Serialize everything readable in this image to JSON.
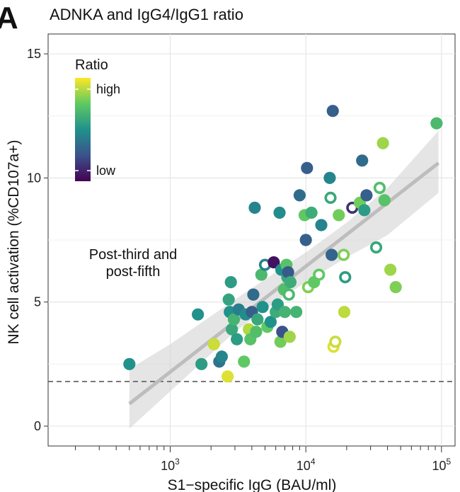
{
  "panel_letter": "A",
  "chart_data": {
    "type": "scatter",
    "title": "ADNKA and IgG4/IgG1 ratio",
    "xlabel": "S1−specific IgG (BAU/ml)",
    "ylabel": "NK cell activation (%CD107a+)",
    "xscale": "log10",
    "xlim_log10": [
      2.1,
      5.1
    ],
    "ylim": [
      -0.8,
      15.8
    ],
    "x_ticks": [
      {
        "value": 1000,
        "base": "10",
        "exp": "3"
      },
      {
        "value": 10000,
        "base": "10",
        "exp": "4"
      },
      {
        "value": 100000,
        "base": "10",
        "exp": "5"
      }
    ],
    "y_ticks": [
      {
        "value": 0,
        "label": "0"
      },
      {
        "value": 5,
        "label": "5"
      },
      {
        "value": 10,
        "label": "10"
      },
      {
        "value": 15,
        "label": "15"
      }
    ],
    "legend": {
      "title": "Ratio",
      "high_label": "high",
      "low_label": "low",
      "position": "top-left"
    },
    "annotation": "Post-third and\npost-fifth",
    "colormap": [
      "#440154",
      "#3b528b",
      "#21918c",
      "#5ec962",
      "#fde725"
    ],
    "reference_line_y": 1.8,
    "regression": {
      "x_start": 500,
      "x_end": 95000,
      "y_start": 0.9,
      "y_end": 10.6
    },
    "confidence_band": {
      "x": [
        500,
        1000,
        3000,
        6000,
        10000,
        20000,
        40000,
        95000
      ],
      "upper": [
        2.3,
        3.3,
        5.1,
        6.2,
        7.0,
        8.2,
        9.6,
        11.9
      ],
      "lower": [
        -0.1,
        1.4,
        3.8,
        5.0,
        5.8,
        6.8,
        7.7,
        9.4
      ]
    },
    "points": [
      {
        "x": 500,
        "y": 2.5,
        "ratio": 0.5,
        "hollow": false
      },
      {
        "x": 1600,
        "y": 4.5,
        "ratio": 0.5,
        "hollow": false
      },
      {
        "x": 1700,
        "y": 2.5,
        "ratio": 0.55,
        "hollow": false
      },
      {
        "x": 2100,
        "y": 3.3,
        "ratio": 0.92,
        "hollow": false
      },
      {
        "x": 2300,
        "y": 2.6,
        "ratio": 0.38,
        "hollow": false
      },
      {
        "x": 2400,
        "y": 2.8,
        "ratio": 0.45,
        "hollow": false
      },
      {
        "x": 2650,
        "y": 2.0,
        "ratio": 0.95,
        "hollow": false
      },
      {
        "x": 2700,
        "y": 5.1,
        "ratio": 0.58,
        "hollow": false
      },
      {
        "x": 2750,
        "y": 4.6,
        "ratio": 0.5,
        "hollow": false
      },
      {
        "x": 2800,
        "y": 5.8,
        "ratio": 0.55,
        "hollow": false
      },
      {
        "x": 2850,
        "y": 3.9,
        "ratio": 0.6,
        "hollow": false
      },
      {
        "x": 2950,
        "y": 4.3,
        "ratio": 0.65,
        "hollow": false
      },
      {
        "x": 3100,
        "y": 3.5,
        "ratio": 0.55,
        "hollow": false
      },
      {
        "x": 3200,
        "y": 4.7,
        "ratio": 0.42,
        "hollow": false
      },
      {
        "x": 3500,
        "y": 2.6,
        "ratio": 0.75,
        "hollow": false
      },
      {
        "x": 3600,
        "y": 4.5,
        "ratio": 0.48,
        "hollow": false
      },
      {
        "x": 3800,
        "y": 3.9,
        "ratio": 0.88,
        "hollow": false
      },
      {
        "x": 3900,
        "y": 3.5,
        "ratio": 0.72,
        "hollow": false
      },
      {
        "x": 4000,
        "y": 4.6,
        "ratio": 0.3,
        "hollow": false
      },
      {
        "x": 4100,
        "y": 5.3,
        "ratio": 0.35,
        "hollow": false
      },
      {
        "x": 4200,
        "y": 8.8,
        "ratio": 0.45,
        "hollow": false
      },
      {
        "x": 4300,
        "y": 3.8,
        "ratio": 0.7,
        "hollow": false
      },
      {
        "x": 4400,
        "y": 4.3,
        "ratio": 0.6,
        "hollow": false
      },
      {
        "x": 4700,
        "y": 6.1,
        "ratio": 0.68,
        "hollow": false
      },
      {
        "x": 4800,
        "y": 4.8,
        "ratio": 0.5,
        "hollow": false
      },
      {
        "x": 5000,
        "y": 6.5,
        "ratio": 0.45,
        "hollow": true
      },
      {
        "x": 5200,
        "y": 4.0,
        "ratio": 0.75,
        "hollow": false
      },
      {
        "x": 5500,
        "y": 4.2,
        "ratio": 0.5,
        "hollow": false
      },
      {
        "x": 5800,
        "y": 6.6,
        "ratio": 0.05,
        "hollow": false
      },
      {
        "x": 6000,
        "y": 4.6,
        "ratio": 0.62,
        "hollow": false
      },
      {
        "x": 6200,
        "y": 4.9,
        "ratio": 0.55,
        "hollow": false
      },
      {
        "x": 6400,
        "y": 8.6,
        "ratio": 0.48,
        "hollow": false
      },
      {
        "x": 6500,
        "y": 3.4,
        "ratio": 0.78,
        "hollow": false
      },
      {
        "x": 6600,
        "y": 6.3,
        "ratio": 0.5,
        "hollow": false
      },
      {
        "x": 6700,
        "y": 3.8,
        "ratio": 0.25,
        "hollow": false
      },
      {
        "x": 6900,
        "y": 5.5,
        "ratio": 0.7,
        "hollow": false
      },
      {
        "x": 7000,
        "y": 4.6,
        "ratio": 0.65,
        "hollow": false
      },
      {
        "x": 7200,
        "y": 6.5,
        "ratio": 0.72,
        "hollow": false
      },
      {
        "x": 7300,
        "y": 6.0,
        "ratio": 0.6,
        "hollow": false
      },
      {
        "x": 7400,
        "y": 6.2,
        "ratio": 0.28,
        "hollow": false
      },
      {
        "x": 7500,
        "y": 5.3,
        "ratio": 0.68,
        "hollow": true
      },
      {
        "x": 7600,
        "y": 3.6,
        "ratio": 0.85,
        "hollow": false
      },
      {
        "x": 7700,
        "y": 5.8,
        "ratio": 0.62,
        "hollow": false
      },
      {
        "x": 8500,
        "y": 4.6,
        "ratio": 0.65,
        "hollow": false
      },
      {
        "x": 9000,
        "y": 9.3,
        "ratio": 0.35,
        "hollow": false
      },
      {
        "x": 9800,
        "y": 8.5,
        "ratio": 0.75,
        "hollow": false
      },
      {
        "x": 10000,
        "y": 7.5,
        "ratio": 0.3,
        "hollow": false
      },
      {
        "x": 10200,
        "y": 10.4,
        "ratio": 0.3,
        "hollow": false
      },
      {
        "x": 10400,
        "y": 5.6,
        "ratio": 0.8,
        "hollow": true
      },
      {
        "x": 11000,
        "y": 8.6,
        "ratio": 0.62,
        "hollow": false
      },
      {
        "x": 11500,
        "y": 5.8,
        "ratio": 0.75,
        "hollow": false
      },
      {
        "x": 12500,
        "y": 6.1,
        "ratio": 0.75,
        "hollow": true
      },
      {
        "x": 13000,
        "y": 8.1,
        "ratio": 0.45,
        "hollow": false
      },
      {
        "x": 15000,
        "y": 10.0,
        "ratio": 0.45,
        "hollow": false
      },
      {
        "x": 15200,
        "y": 9.2,
        "ratio": 0.6,
        "hollow": true
      },
      {
        "x": 15500,
        "y": 6.9,
        "ratio": 0.32,
        "hollow": false
      },
      {
        "x": 15800,
        "y": 12.7,
        "ratio": 0.3,
        "hollow": false
      },
      {
        "x": 16000,
        "y": 3.2,
        "ratio": 0.95,
        "hollow": true
      },
      {
        "x": 16500,
        "y": 3.4,
        "ratio": 0.92,
        "hollow": true
      },
      {
        "x": 17500,
        "y": 8.5,
        "ratio": 0.78,
        "hollow": false
      },
      {
        "x": 19000,
        "y": 6.9,
        "ratio": 0.8,
        "hollow": true
      },
      {
        "x": 19200,
        "y": 4.6,
        "ratio": 0.9,
        "hollow": false
      },
      {
        "x": 19500,
        "y": 6.0,
        "ratio": 0.55,
        "hollow": true
      },
      {
        "x": 22000,
        "y": 8.8,
        "ratio": 0.15,
        "hollow": true
      },
      {
        "x": 25000,
        "y": 9.0,
        "ratio": 0.78,
        "hollow": false
      },
      {
        "x": 26000,
        "y": 10.7,
        "ratio": 0.35,
        "hollow": false
      },
      {
        "x": 27000,
        "y": 8.7,
        "ratio": 0.55,
        "hollow": false
      },
      {
        "x": 28000,
        "y": 9.3,
        "ratio": 0.3,
        "hollow": false
      },
      {
        "x": 33000,
        "y": 7.2,
        "ratio": 0.6,
        "hollow": true
      },
      {
        "x": 35000,
        "y": 9.6,
        "ratio": 0.7,
        "hollow": true
      },
      {
        "x": 37000,
        "y": 11.4,
        "ratio": 0.85,
        "hollow": false
      },
      {
        "x": 38000,
        "y": 9.1,
        "ratio": 0.72,
        "hollow": false
      },
      {
        "x": 42000,
        "y": 6.3,
        "ratio": 0.85,
        "hollow": false
      },
      {
        "x": 46000,
        "y": 5.6,
        "ratio": 0.8,
        "hollow": false
      },
      {
        "x": 92000,
        "y": 12.2,
        "ratio": 0.68,
        "hollow": false
      }
    ]
  }
}
